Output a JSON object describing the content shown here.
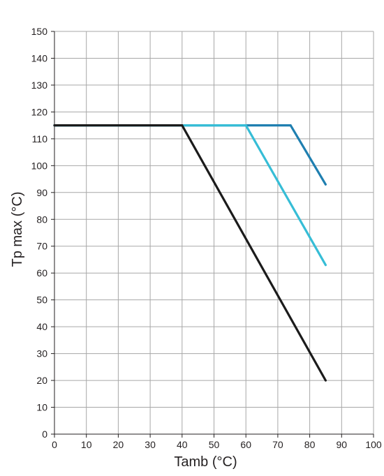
{
  "chart_data": {
    "type": "line",
    "title": "",
    "xlabel": "Tamb (°C)",
    "ylabel": "Tp max (°C)",
    "xlim": [
      0,
      100
    ],
    "ylim": [
      0,
      150
    ],
    "x_ticks": [
      0,
      10,
      20,
      30,
      40,
      50,
      60,
      70,
      80,
      90,
      100
    ],
    "y_ticks": [
      0,
      10,
      20,
      30,
      40,
      50,
      60,
      70,
      80,
      90,
      100,
      110,
      120,
      130,
      140,
      150
    ],
    "grid": true,
    "legend": "none",
    "series": [
      {
        "color": "#1f7fb0",
        "points": [
          [
            0,
            115
          ],
          [
            74,
            115
          ],
          [
            85,
            93
          ]
        ]
      },
      {
        "color": "#36bdd6",
        "points": [
          [
            0,
            115
          ],
          [
            60,
            115
          ],
          [
            85,
            63
          ]
        ]
      },
      {
        "color": "#1b1b1b",
        "points": [
          [
            0,
            115
          ],
          [
            40,
            115
          ],
          [
            85,
            20
          ]
        ]
      }
    ],
    "colors": {
      "grid": "#a7a7a7",
      "axis": "#231f20",
      "text": "#231f20"
    }
  }
}
